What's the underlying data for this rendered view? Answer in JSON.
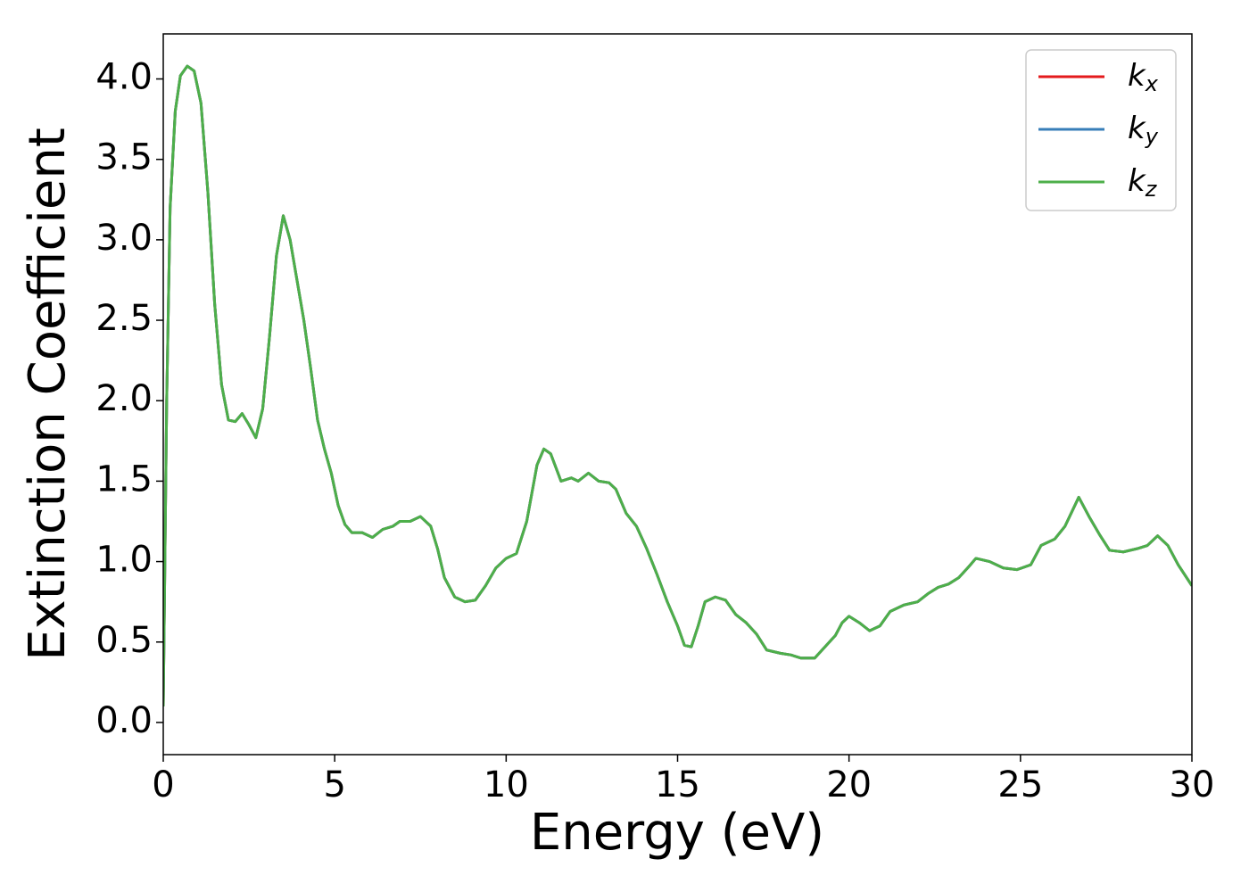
{
  "chart_data": {
    "type": "line",
    "xlabel": "Energy (eV)",
    "ylabel": "Extinction Coefficient",
    "x": [
      0,
      0.1,
      0.2,
      0.35,
      0.5,
      0.7,
      0.9,
      1.1,
      1.3,
      1.5,
      1.7,
      1.9,
      2.1,
      2.3,
      2.5,
      2.7,
      2.9,
      3.1,
      3.3,
      3.5,
      3.7,
      3.9,
      4.1,
      4.3,
      4.5,
      4.7,
      4.9,
      5.1,
      5.3,
      5.5,
      5.8,
      6.1,
      6.4,
      6.7,
      6.9,
      7.2,
      7.5,
      7.8,
      8.0,
      8.2,
      8.5,
      8.8,
      9.1,
      9.4,
      9.7,
      10.0,
      10.3,
      10.6,
      10.9,
      11.1,
      11.3,
      11.6,
      11.9,
      12.1,
      12.4,
      12.7,
      13.0,
      13.2,
      13.5,
      13.8,
      14.1,
      14.4,
      14.7,
      15.0,
      15.2,
      15.4,
      15.6,
      15.8,
      16.1,
      16.4,
      16.7,
      17.0,
      17.3,
      17.6,
      18.0,
      18.3,
      18.6,
      19.0,
      19.3,
      19.6,
      19.8,
      20.0,
      20.3,
      20.6,
      20.9,
      21.2,
      21.6,
      22.0,
      22.3,
      22.6,
      22.9,
      23.2,
      23.5,
      23.7,
      24.1,
      24.5,
      24.9,
      25.3,
      25.6,
      26.0,
      26.3,
      26.7,
      27.0,
      27.3,
      27.6,
      28.0,
      28.4,
      28.7,
      29.0,
      29.3,
      29.6,
      30.0
    ],
    "series": [
      {
        "name": "kx",
        "color": "#e41a1c",
        "values": [
          0.1,
          2.0,
          3.2,
          3.8,
          4.02,
          4.08,
          4.05,
          3.85,
          3.3,
          2.6,
          2.1,
          1.88,
          1.87,
          1.92,
          1.85,
          1.77,
          1.95,
          2.4,
          2.9,
          3.15,
          3.0,
          2.75,
          2.5,
          2.2,
          1.88,
          1.7,
          1.55,
          1.35,
          1.23,
          1.18,
          1.18,
          1.15,
          1.2,
          1.22,
          1.25,
          1.25,
          1.28,
          1.22,
          1.08,
          0.9,
          0.78,
          0.75,
          0.76,
          0.85,
          0.96,
          1.02,
          1.05,
          1.25,
          1.6,
          1.7,
          1.67,
          1.5,
          1.52,
          1.5,
          1.55,
          1.5,
          1.49,
          1.45,
          1.3,
          1.22,
          1.08,
          0.92,
          0.75,
          0.6,
          0.48,
          0.47,
          0.6,
          0.75,
          0.78,
          0.76,
          0.67,
          0.62,
          0.55,
          0.45,
          0.43,
          0.42,
          0.4,
          0.4,
          0.47,
          0.54,
          0.62,
          0.66,
          0.62,
          0.57,
          0.6,
          0.69,
          0.73,
          0.75,
          0.8,
          0.84,
          0.86,
          0.9,
          0.97,
          1.02,
          1.0,
          0.96,
          0.95,
          0.98,
          1.1,
          1.14,
          1.22,
          1.4,
          1.28,
          1.17,
          1.07,
          1.06,
          1.08,
          1.1,
          1.16,
          1.1,
          0.98,
          0.85
        ]
      },
      {
        "name": "ky",
        "color": "#377eb8",
        "values": [
          0.1,
          2.0,
          3.2,
          3.8,
          4.02,
          4.08,
          4.05,
          3.85,
          3.3,
          2.6,
          2.1,
          1.88,
          1.87,
          1.92,
          1.85,
          1.77,
          1.95,
          2.4,
          2.9,
          3.15,
          3.0,
          2.75,
          2.5,
          2.2,
          1.88,
          1.7,
          1.55,
          1.35,
          1.23,
          1.18,
          1.18,
          1.15,
          1.2,
          1.22,
          1.25,
          1.25,
          1.28,
          1.22,
          1.08,
          0.9,
          0.78,
          0.75,
          0.76,
          0.85,
          0.96,
          1.02,
          1.05,
          1.25,
          1.6,
          1.7,
          1.67,
          1.5,
          1.52,
          1.5,
          1.55,
          1.5,
          1.49,
          1.45,
          1.3,
          1.22,
          1.08,
          0.92,
          0.75,
          0.6,
          0.48,
          0.47,
          0.6,
          0.75,
          0.78,
          0.76,
          0.67,
          0.62,
          0.55,
          0.45,
          0.43,
          0.42,
          0.4,
          0.4,
          0.47,
          0.54,
          0.62,
          0.66,
          0.62,
          0.57,
          0.6,
          0.69,
          0.73,
          0.75,
          0.8,
          0.84,
          0.86,
          0.9,
          0.97,
          1.02,
          1.0,
          0.96,
          0.95,
          0.98,
          1.1,
          1.14,
          1.22,
          1.4,
          1.28,
          1.17,
          1.07,
          1.06,
          1.08,
          1.1,
          1.16,
          1.1,
          0.98,
          0.85
        ]
      },
      {
        "name": "kz",
        "color": "#4daf4a",
        "values": [
          0.1,
          2.0,
          3.2,
          3.8,
          4.02,
          4.08,
          4.05,
          3.85,
          3.3,
          2.6,
          2.1,
          1.88,
          1.87,
          1.92,
          1.85,
          1.77,
          1.95,
          2.4,
          2.9,
          3.15,
          3.0,
          2.75,
          2.5,
          2.2,
          1.88,
          1.7,
          1.55,
          1.35,
          1.23,
          1.18,
          1.18,
          1.15,
          1.2,
          1.22,
          1.25,
          1.25,
          1.28,
          1.22,
          1.08,
          0.9,
          0.78,
          0.75,
          0.76,
          0.85,
          0.96,
          1.02,
          1.05,
          1.25,
          1.6,
          1.7,
          1.67,
          1.5,
          1.52,
          1.5,
          1.55,
          1.5,
          1.49,
          1.45,
          1.3,
          1.22,
          1.08,
          0.92,
          0.75,
          0.6,
          0.48,
          0.47,
          0.6,
          0.75,
          0.78,
          0.76,
          0.67,
          0.62,
          0.55,
          0.45,
          0.43,
          0.42,
          0.4,
          0.4,
          0.47,
          0.54,
          0.62,
          0.66,
          0.62,
          0.57,
          0.6,
          0.69,
          0.73,
          0.75,
          0.8,
          0.84,
          0.86,
          0.9,
          0.97,
          1.02,
          1.0,
          0.96,
          0.95,
          0.98,
          1.1,
          1.14,
          1.22,
          1.4,
          1.28,
          1.17,
          1.07,
          1.06,
          1.08,
          1.1,
          1.16,
          1.1,
          0.98,
          0.85
        ]
      }
    ],
    "xlim": [
      0,
      30
    ],
    "xticks": [
      0,
      5,
      10,
      15,
      20,
      25,
      30
    ],
    "ylim": [
      -0.2,
      4.28
    ],
    "yticks": [
      {
        "value": 0,
        "label": "0.0"
      },
      0.5,
      {
        "value": 1,
        "label": "1.0"
      },
      1.5,
      {
        "value": 2,
        "label": "2.0"
      },
      2.5,
      {
        "value": 3,
        "label": "3.0"
      },
      3.5,
      {
        "value": 4,
        "label": "4.0"
      }
    ],
    "legend": "upper right",
    "grid": false
  }
}
